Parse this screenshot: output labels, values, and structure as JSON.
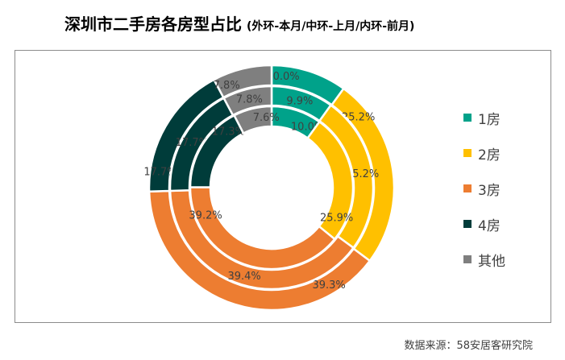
{
  "title": "深圳市二手房各房型占比",
  "subtitle": "(外环-本月/中环-上月/内环-前月)",
  "source": "数据来源：58安居客研究院",
  "chart_data": {
    "type": "donut",
    "categories": [
      "1房",
      "2房",
      "3房",
      "4房",
      "其他"
    ],
    "colors": [
      "#00A28A",
      "#FFC000",
      "#ED7D31",
      "#003C3A",
      "#7F7F7F"
    ],
    "series": [
      {
        "name": "本月",
        "ring": "outer",
        "values": [
          10.0,
          25.2,
          39.3,
          17.7,
          7.8
        ],
        "labels": [
          "10.0%",
          "25.2%",
          "39.3%",
          "17.7%",
          "7.8%"
        ]
      },
      {
        "name": "上月",
        "ring": "middle",
        "values": [
          9.9,
          25.2,
          39.4,
          17.7,
          7.8
        ],
        "labels": [
          "9.9%",
          "25.2%",
          "39.4%",
          "17.7%",
          "7.8%"
        ]
      },
      {
        "name": "前月",
        "ring": "inner",
        "values": [
          10.0,
          25.9,
          39.2,
          17.3,
          7.6
        ],
        "labels": [
          "10.0%",
          "25.9%",
          "39.2%",
          "17.3%",
          "7.6%"
        ]
      }
    ],
    "legend_position": "right"
  }
}
